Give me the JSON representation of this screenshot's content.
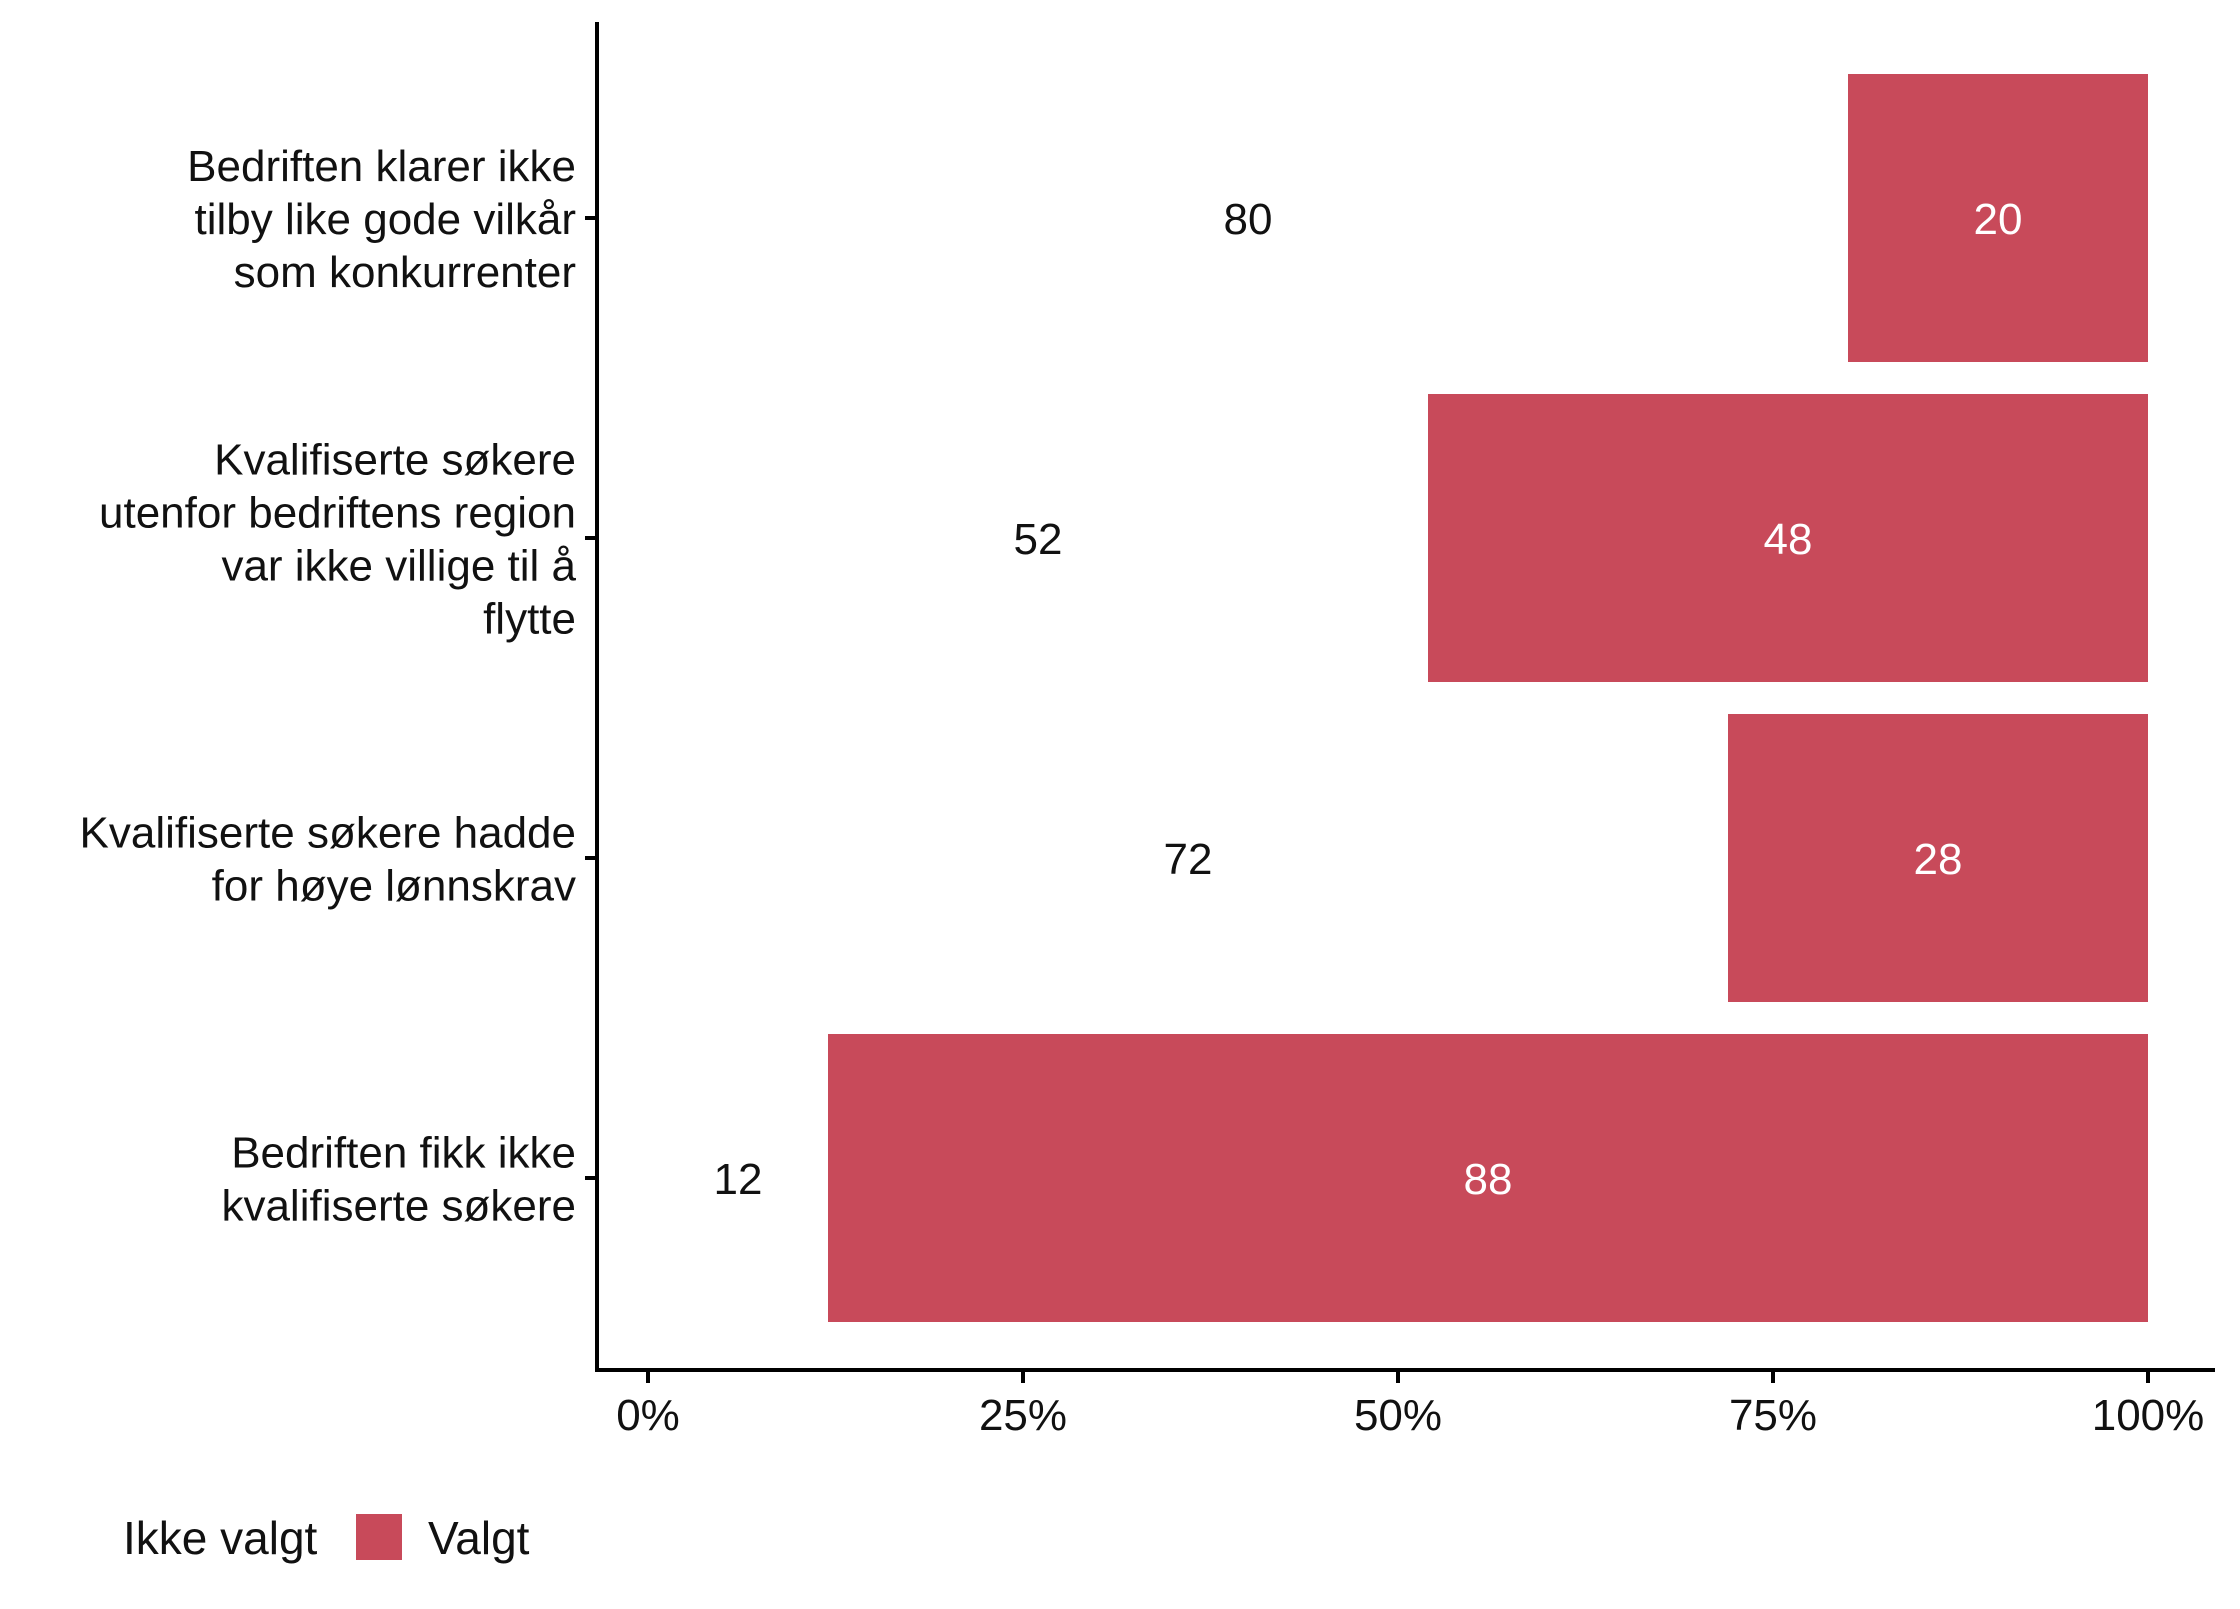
{
  "chart_data": {
    "type": "bar",
    "orientation": "horizontal",
    "stacked": true,
    "categories": [
      [
        "Bedriften klarer ikke",
        "tilby like gode vilkår",
        "som konkurrenter"
      ],
      [
        "Kvalifiserte søkere",
        "utenfor bedriftens region",
        "var ikke villige til å",
        "flytte"
      ],
      [
        "Kvalifiserte søkere hadde",
        "for høye lønnskrav"
      ],
      [
        "Bedriften fikk ikke",
        "kvalifiserte søkere"
      ]
    ],
    "series": [
      {
        "name": "Ikke valgt",
        "values": [
          80,
          52,
          72,
          12
        ],
        "color": "#ffffff",
        "label_color": "#111111"
      },
      {
        "name": "Valgt",
        "values": [
          20,
          48,
          28,
          88
        ],
        "color": "#c84a5a",
        "label_color": "#ffffff"
      }
    ],
    "xlim": [
      0,
      100
    ],
    "xticks": [
      0,
      25,
      50,
      75,
      100
    ],
    "xtick_labels": [
      "0%",
      "25%",
      "50%",
      "75%",
      "100%"
    ],
    "xlabel": "",
    "ylabel": "",
    "grid": false,
    "legend": {
      "position": "bottom-left"
    }
  }
}
